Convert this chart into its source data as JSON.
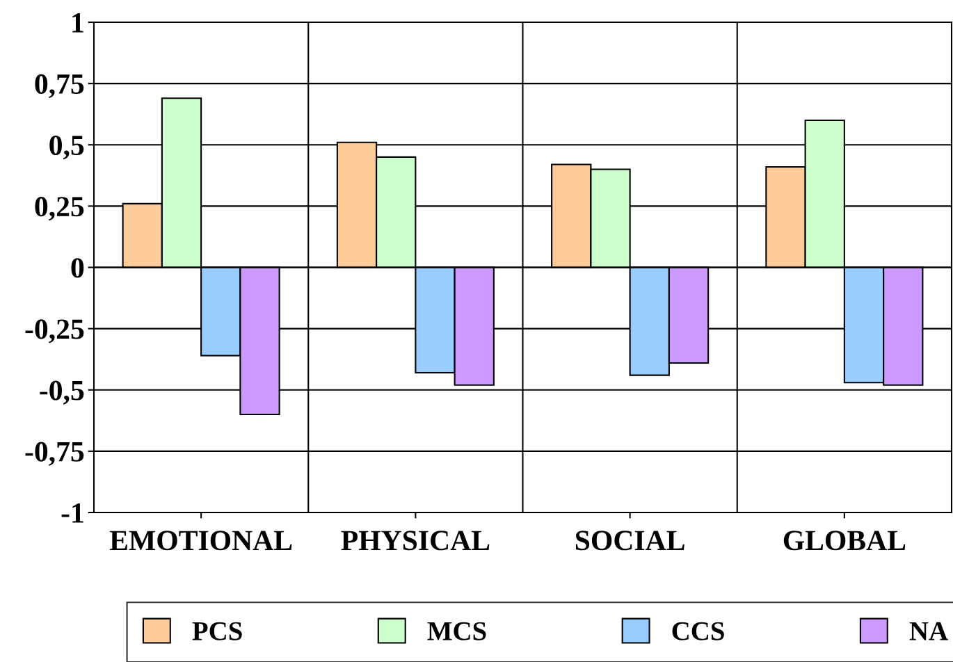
{
  "chart_data": {
    "type": "bar",
    "categories": [
      "EMOTIONAL",
      "PHYSICAL",
      "SOCIAL",
      "GLOBAL"
    ],
    "series": [
      {
        "name": "PCS",
        "color": "#ffcc99",
        "values": [
          0.26,
          0.51,
          0.42,
          0.41
        ]
      },
      {
        "name": "MCS",
        "color": "#ccffcc",
        "values": [
          0.69,
          0.45,
          0.4,
          0.6
        ]
      },
      {
        "name": "CCS",
        "color": "#99ccff",
        "values": [
          -0.36,
          -0.43,
          -0.44,
          -0.47
        ]
      },
      {
        "name": "NA",
        "color": "#cc99ff",
        "values": [
          -0.6,
          -0.48,
          -0.39,
          -0.48
        ]
      }
    ],
    "ylim": [
      -1,
      1
    ],
    "yticks": [
      -1,
      {
        "value": -0.75,
        "label": "-0,75"
      },
      {
        "value": -0.5,
        "label": "-0,5"
      },
      {
        "value": -0.25,
        "label": "-0,25"
      },
      0,
      {
        "value": 0.25,
        "label": "0,25"
      },
      {
        "value": 0.5,
        "label": "0,5"
      },
      {
        "value": 0.75,
        "label": "0,75"
      },
      1
    ],
    "grid": true,
    "legend": "bottom"
  }
}
